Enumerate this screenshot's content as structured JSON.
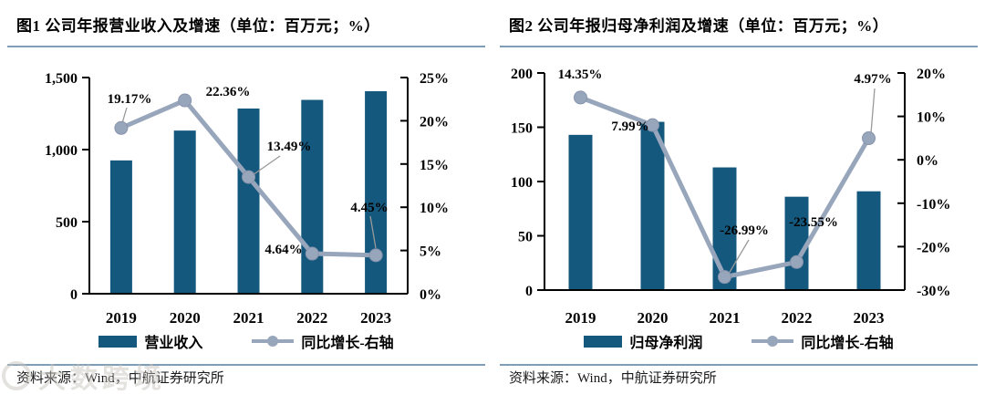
{
  "watermark": "大数跨境",
  "colors": {
    "bar": "#15587E",
    "line": "#98A6BC",
    "line_marker_stroke": "#8793AC",
    "rule": "#7D9DB8",
    "leader": "#999999",
    "axis": "#000000"
  },
  "chart_data": [
    {
      "type": "bar+line",
      "title": "图1 公司年报营业收入及增速（单位：百万元；%）",
      "categories": [
        "2019",
        "2020",
        "2021",
        "2022",
        "2023"
      ],
      "series": [
        {
          "name": "营业收入",
          "type": "bar",
          "axis": "left",
          "values": [
            925,
            1132,
            1285,
            1345,
            1405
          ]
        },
        {
          "name": "同比增长-右轴",
          "type": "line",
          "axis": "right",
          "values": [
            19.17,
            22.36,
            13.49,
            4.64,
            4.45
          ],
          "point_labels": [
            "19.17%",
            "22.36%",
            "13.49%",
            "4.64%",
            "4.45%"
          ]
        }
      ],
      "left_axis": {
        "min": 0,
        "max": 1500,
        "tick_values": [
          0,
          500,
          1000,
          1500
        ],
        "tick_labels": [
          "0",
          "500",
          "1,000",
          "1,500"
        ]
      },
      "right_axis": {
        "min": 0,
        "max": 25,
        "tick_values": [
          0,
          5,
          10,
          15,
          20,
          25
        ],
        "tick_labels": [
          "0%",
          "5%",
          "10%",
          "15%",
          "20%",
          "25%"
        ]
      },
      "grid": false,
      "legend_position": "bottom",
      "source": "资料来源：Wind，中航证券研究所"
    },
    {
      "type": "bar+line",
      "title": "图2 公司年报归母净利润及增速（单位：百万元；%）",
      "categories": [
        "2019",
        "2020",
        "2021",
        "2022",
        "2023"
      ],
      "series": [
        {
          "name": "归母净利润",
          "type": "bar",
          "axis": "left",
          "values": [
            143,
            155,
            113,
            86,
            91
          ]
        },
        {
          "name": "同比增长-右轴",
          "type": "line",
          "axis": "right",
          "values": [
            14.35,
            7.99,
            -26.99,
            -23.55,
            4.97
          ],
          "point_labels": [
            "14.35%",
            "7.99%",
            "-26.99%",
            "-23.55%",
            "4.97%"
          ]
        }
      ],
      "left_axis": {
        "min": 0,
        "max": 200,
        "tick_values": [
          0,
          50,
          100,
          150,
          200
        ],
        "tick_labels": [
          "0",
          "50",
          "100",
          "150",
          "200"
        ]
      },
      "right_axis": {
        "min": -30,
        "max": 20,
        "tick_values": [
          -30,
          -20,
          -10,
          0,
          10,
          20
        ],
        "tick_labels": [
          "-30%",
          "-20%",
          "-10%",
          "0%",
          "10%",
          "20%"
        ]
      },
      "grid": false,
      "legend_position": "bottom",
      "source": "资料来源：Wind，中航证券研究所"
    }
  ]
}
